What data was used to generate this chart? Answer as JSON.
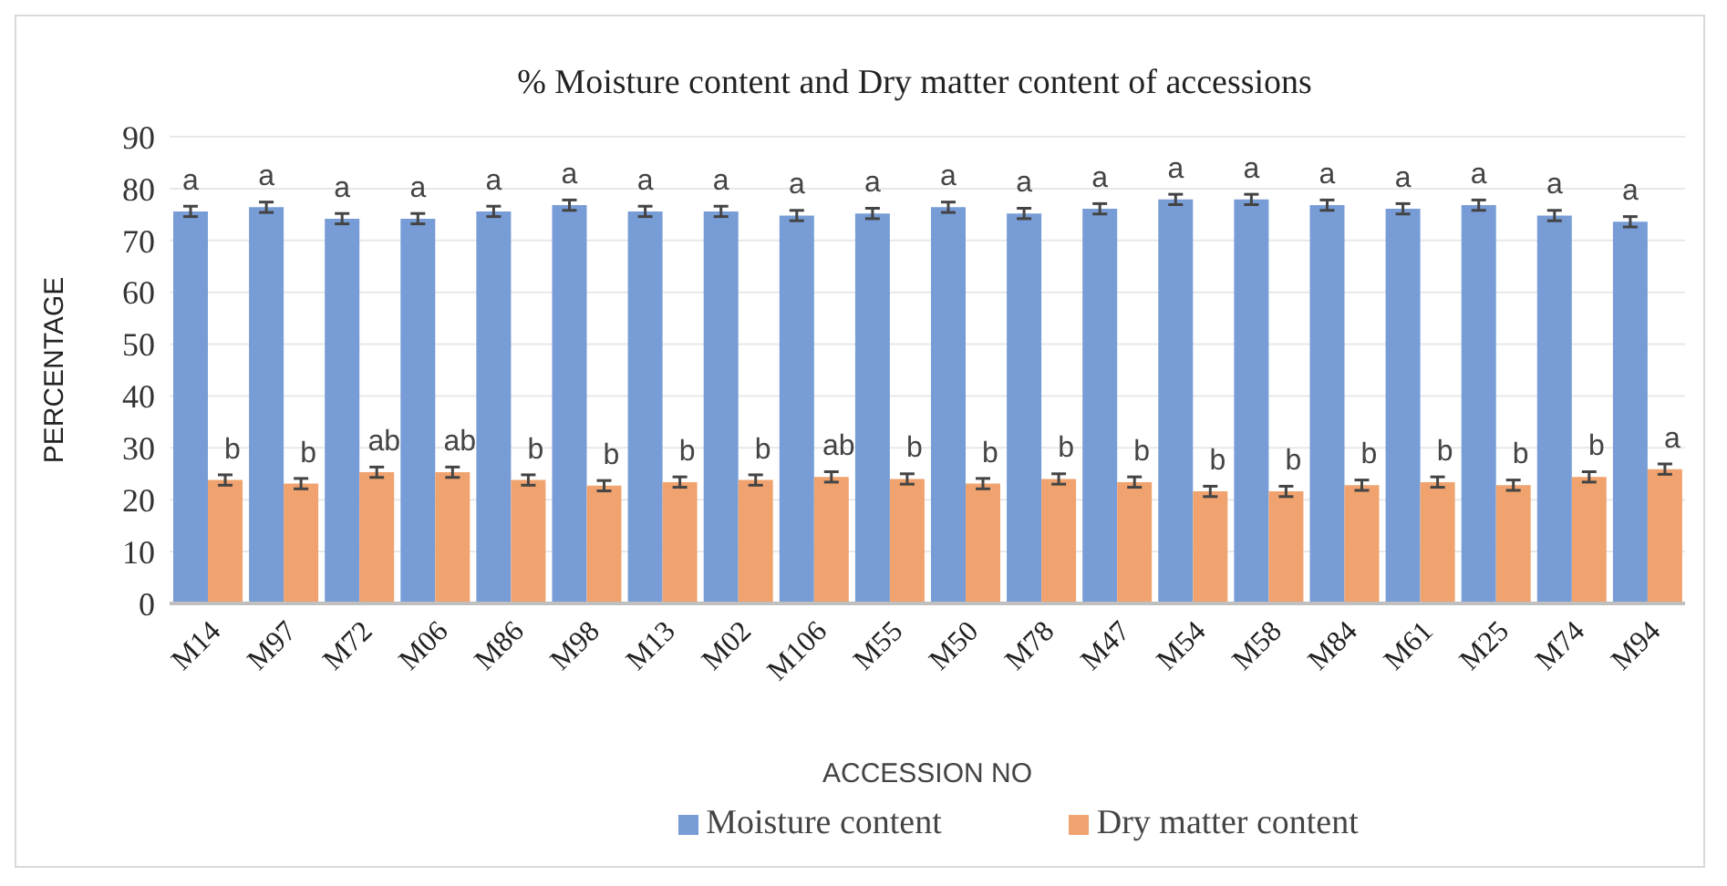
{
  "chart_data": {
    "type": "bar",
    "title": "% Moisture content and Dry matter content of accessions",
    "xlabel": "ACCESSION  NO",
    "ylabel": "PERCENTAGE",
    "categories": [
      "M14",
      "M97",
      "M72",
      "M06",
      "M86",
      "M98",
      "M13",
      "M02",
      "M106",
      "M55",
      "M50",
      "M78",
      "M47",
      "M54",
      "M58",
      "M84",
      "M61",
      "M25",
      "M74",
      "M94"
    ],
    "series": [
      {
        "name": "Moisture content",
        "color": "#779cd6",
        "values": [
          75.6,
          76.4,
          74.2,
          74.2,
          75.6,
          76.8,
          75.6,
          75.6,
          74.8,
          75.2,
          76.4,
          75.2,
          76.1,
          77.9,
          77.9,
          76.8,
          76.1,
          76.8,
          74.8,
          73.6
        ],
        "errors": [
          1,
          1,
          1,
          1,
          1,
          1,
          1,
          1,
          1,
          1,
          1,
          1,
          1,
          1,
          1,
          1,
          1,
          1,
          1,
          1
        ],
        "value_labels": [
          "a",
          "a",
          "a",
          "a",
          "a",
          "a",
          "a",
          "a",
          "a",
          "a",
          "a",
          "a",
          "a",
          "a",
          "a",
          "a",
          "a",
          "a",
          "a",
          "a"
        ]
      },
      {
        "name": "Dry matter content",
        "color": "#f0a36e",
        "values": [
          23.8,
          23.1,
          25.3,
          25.3,
          23.8,
          22.7,
          23.4,
          23.8,
          24.4,
          24.0,
          23.1,
          24.0,
          23.4,
          21.6,
          21.6,
          22.8,
          23.4,
          22.8,
          24.4,
          25.9
        ],
        "errors": [
          1,
          1,
          1,
          1,
          1,
          1,
          1,
          1,
          1,
          1,
          1,
          1,
          1,
          1,
          1,
          1,
          1,
          1,
          1,
          1
        ],
        "value_labels": [
          "b",
          "b",
          "ab",
          "ab",
          "b",
          "b",
          "b",
          "b",
          "ab",
          "b",
          "b",
          "b",
          "b",
          "b",
          "b",
          "b",
          "b",
          "b",
          "b",
          "a"
        ]
      }
    ],
    "ylim": [
      0,
      90
    ],
    "yticks": [
      0,
      10,
      20,
      30,
      40,
      50,
      60,
      70,
      80,
      90
    ],
    "grid": "y",
    "legend": "bottom"
  }
}
